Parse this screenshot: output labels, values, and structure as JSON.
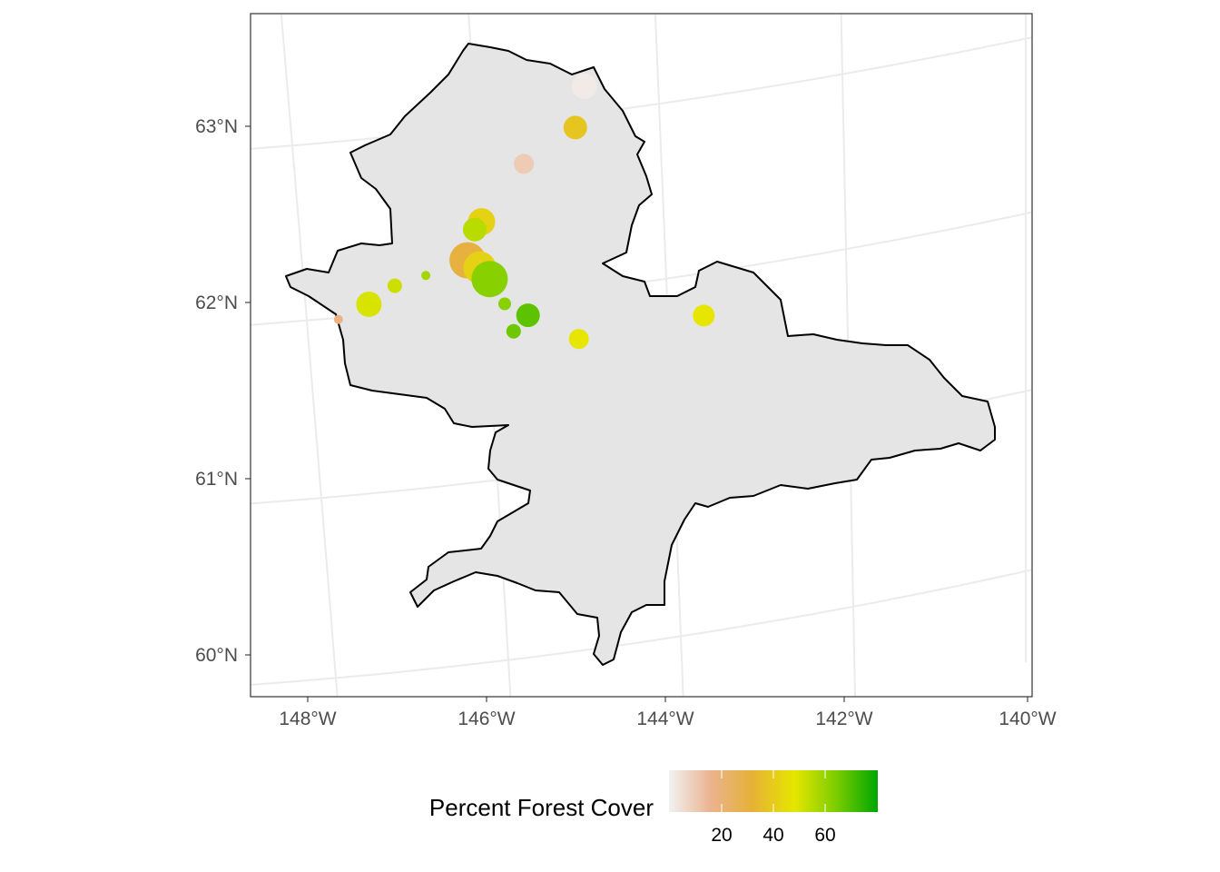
{
  "map": {
    "lat_labels": [
      "63°N",
      "62°N",
      "61°N",
      "60°N"
    ],
    "lon_labels": [
      "148°W",
      "146°W",
      "144°W",
      "142°W",
      "140°W"
    ],
    "region_color": "#e5e5e5",
    "border_color": "#000000",
    "grid_color": "#ebebeb"
  },
  "legend": {
    "title": "Percent Forest Cover",
    "ticks": [
      "20",
      "40",
      "60"
    ],
    "colors": [
      "#f2f2f2",
      "#eab38f",
      "#e6b135",
      "#e6e600",
      "#7ccd00",
      "#00a600"
    ]
  },
  "sites": [
    {
      "lon": -144.8,
      "lat": 63.16,
      "cover": 2
    },
    {
      "lon": -144.92,
      "lat": 62.93,
      "cover": 38
    },
    {
      "lon": -145.5,
      "lat": 62.76,
      "cover": 10
    },
    {
      "lon": -146.0,
      "lat": 62.46,
      "cover": 42
    },
    {
      "lon": -146.08,
      "lat": 62.42,
      "cover": 55
    },
    {
      "lon": -146.18,
      "lat": 62.25,
      "cover": 30
    },
    {
      "lon": -146.05,
      "lat": 62.2,
      "cover": 42
    },
    {
      "lon": -145.95,
      "lat": 62.13,
      "cover": 62
    },
    {
      "lon": -146.65,
      "lat": 62.19,
      "cover": 58
    },
    {
      "lon": -147.0,
      "lat": 62.15,
      "cover": 52
    },
    {
      "lon": -147.3,
      "lat": 62.06,
      "cover": 50
    },
    {
      "lon": -147.65,
      "lat": 61.99,
      "cover": 18
    },
    {
      "lon": -145.8,
      "lat": 61.98,
      "cover": 62
    },
    {
      "lon": -145.55,
      "lat": 61.9,
      "cover": 68
    },
    {
      "lon": -145.72,
      "lat": 61.82,
      "cover": 66
    },
    {
      "lon": -145.0,
      "lat": 61.73,
      "cover": 48
    },
    {
      "lon": -143.6,
      "lat": 61.76,
      "cover": 48
    }
  ]
}
